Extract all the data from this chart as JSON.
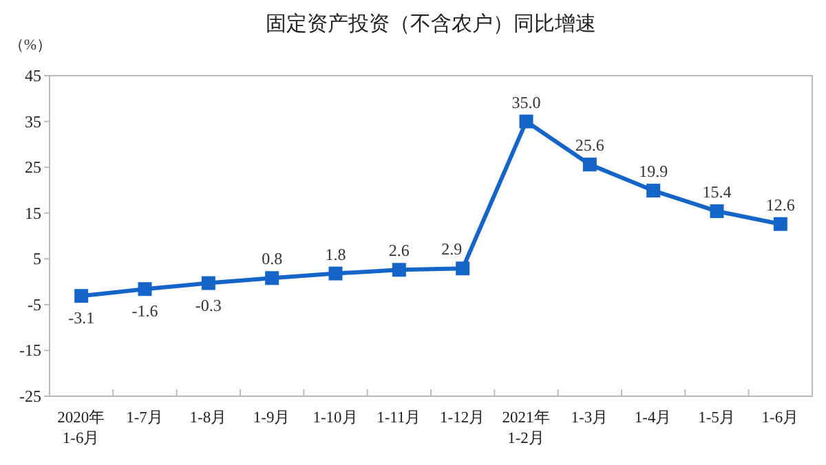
{
  "chart_data": {
    "type": "line",
    "title": "固定资产投资（不含农户）同比增速",
    "ylabel": "（%）",
    "categories": [
      "2020年\n1-6月",
      "1-7月",
      "1-8月",
      "1-9月",
      "1-10月",
      "1-11月",
      "1-12月",
      "2021年\n1-2月",
      "1-3月",
      "1-4月",
      "1-5月",
      "1-6月"
    ],
    "series": [
      {
        "color": "#1565c8",
        "values": [
          -3.1,
          -1.6,
          -0.3,
          0.8,
          1.8,
          2.6,
          2.9,
          35.0,
          25.6,
          19.9,
          15.4,
          12.6
        ],
        "value_labels": [
          "-3.1",
          "-1.6",
          "-0.3",
          "0.8",
          "1.8",
          "2.6",
          "2.9",
          "35.0",
          "25.6",
          "19.9",
          "15.4",
          "12.6"
        ]
      }
    ],
    "ylim": [
      -25,
      45
    ],
    "yticks": [
      -25,
      -15,
      -5,
      5,
      15,
      25,
      35,
      45
    ],
    "grid": false,
    "marker": "square",
    "line_style": "solid"
  }
}
